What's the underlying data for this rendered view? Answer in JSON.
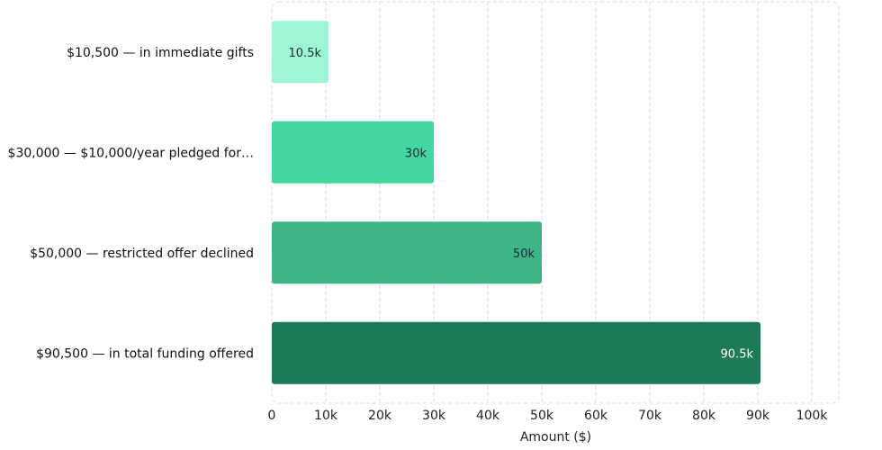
{
  "chart_data": {
    "type": "bar",
    "orientation": "horizontal",
    "categories": [
      "$10,500 — in immediate gifts",
      "$30,000 — $10,000/year pledged for…",
      "$50,000 — restricted offer declined",
      "$90,500 — in total funding offered"
    ],
    "values": [
      10500,
      30000,
      50000,
      90500
    ],
    "data_labels": [
      "10.5k",
      "30k",
      "50k",
      "90.5k"
    ],
    "bar_colors": [
      "#9ef5d4",
      "#43d69e",
      "#3db585",
      "#1c7a57"
    ],
    "data_label_colors": [
      "#1f2937",
      "#1f2937",
      "#1f2937",
      "#ffffff"
    ],
    "xlabel": "Amount ($)",
    "xlim": [
      0,
      105000
    ],
    "x_ticks": [
      0,
      10000,
      20000,
      30000,
      40000,
      50000,
      60000,
      70000,
      80000,
      90000,
      100000
    ],
    "x_tick_labels": [
      "0",
      "10k",
      "20k",
      "30k",
      "40k",
      "50k",
      "60k",
      "70k",
      "80k",
      "90k",
      "100k"
    ],
    "grid": true,
    "legend": "none"
  }
}
